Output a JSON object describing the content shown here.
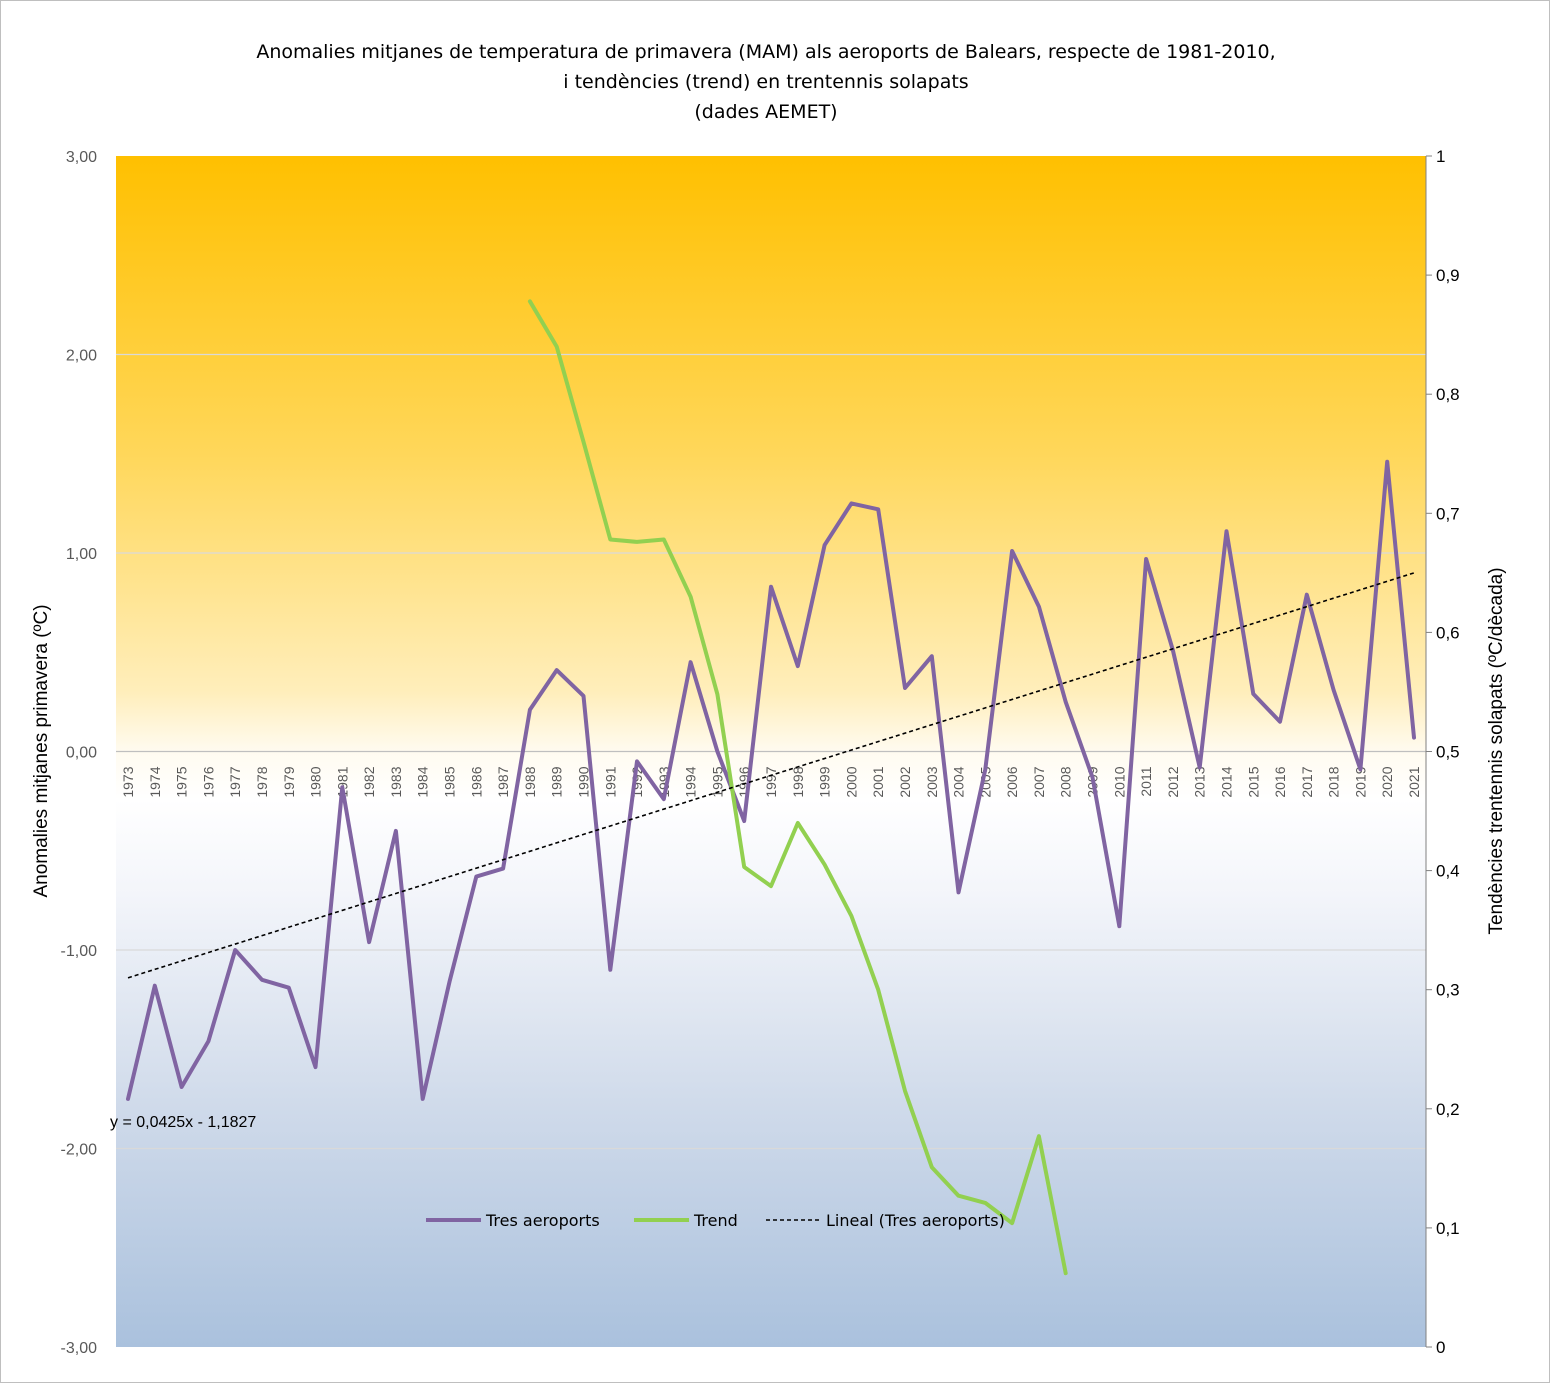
{
  "chart_data": {
    "type": "line",
    "title_lines": [
      "Anomalies mitjanes de temperatura de primavera (MAM) als aeroports de Balears, respecte de 1981-2010,",
      "i tendències (trend) en trentennis solapats",
      "(dades AEMET)"
    ],
    "ylabel": "Anomalies mitjanes primavera (ºC)",
    "y2label": "Tendències trentennis solapats (ºC/dècada)",
    "ylim": [
      -3,
      3
    ],
    "y2lim": [
      0,
      1
    ],
    "yticks": [
      "3,00",
      "2,00",
      "1,00",
      "0,00",
      "-1,00",
      "-2,00",
      "-3,00"
    ],
    "y2ticks": [
      "1",
      "0,9",
      "0,8",
      "0,7",
      "0,6",
      "0,5",
      "0,4",
      "0,3",
      "0,2",
      "0,1",
      "0"
    ],
    "years": [
      "1973",
      "1974",
      "1975",
      "1976",
      "1977",
      "1978",
      "1979",
      "1980",
      "1981",
      "1982",
      "1983",
      "1984",
      "1985",
      "1986",
      "1987",
      "1988",
      "1989",
      "1990",
      "1991",
      "1992",
      "1993",
      "1994",
      "1995",
      "1996",
      "1997",
      "1998",
      "1999",
      "2000",
      "2001",
      "2002",
      "2003",
      "2004",
      "2005",
      "2006",
      "2007",
      "2008",
      "2009",
      "2010",
      "2011",
      "2012",
      "2013",
      "2014",
      "2015",
      "2016",
      "2017",
      "2018",
      "2019",
      "2020",
      "2021"
    ],
    "series": [
      {
        "name": "Tres aeroports",
        "axis": "left",
        "color": "#8064a2",
        "values": [
          -1.75,
          -1.18,
          -1.69,
          -1.46,
          -1.0,
          -1.15,
          -1.19,
          -1.59,
          -0.18,
          -0.96,
          -0.4,
          -1.75,
          -1.16,
          -0.63,
          -0.59,
          0.21,
          0.41,
          0.28,
          -1.1,
          -0.05,
          -0.24,
          0.45,
          0.0,
          -0.35,
          0.83,
          0.43,
          1.04,
          1.25,
          1.22,
          0.32,
          0.48,
          -0.71,
          -0.09,
          1.01,
          0.73,
          0.25,
          -0.13,
          -0.88,
          0.97,
          0.51,
          -0.08,
          1.11,
          0.29,
          0.15,
          0.79,
          0.31,
          -0.09,
          1.46,
          0.07
        ]
      },
      {
        "name": "Trend",
        "axis": "right",
        "color": "#92d050",
        "start_year": "1988",
        "values": [
          0.878,
          0.84,
          0.76,
          0.678,
          0.676,
          0.678,
          0.63,
          0.548,
          0.403,
          0.387,
          0.44,
          0.405,
          0.362,
          0.3,
          0.215,
          0.151,
          0.127,
          0.121,
          0.104,
          0.177,
          0.062
        ]
      },
      {
        "name": "Lineal  (Tres aeroports)",
        "axis": "left",
        "type": "linear-trendline",
        "color": "#000000",
        "slope": 0.0425,
        "intercept": -1.1827
      }
    ],
    "equation_label": "y = 0,0425x - 1,1827",
    "legend_position": "bottom-center",
    "background_gradient": {
      "top": "#ffc000",
      "middle": "#fffbf0",
      "zero_band": "#ffffff",
      "bottom": "#aec3de"
    }
  }
}
